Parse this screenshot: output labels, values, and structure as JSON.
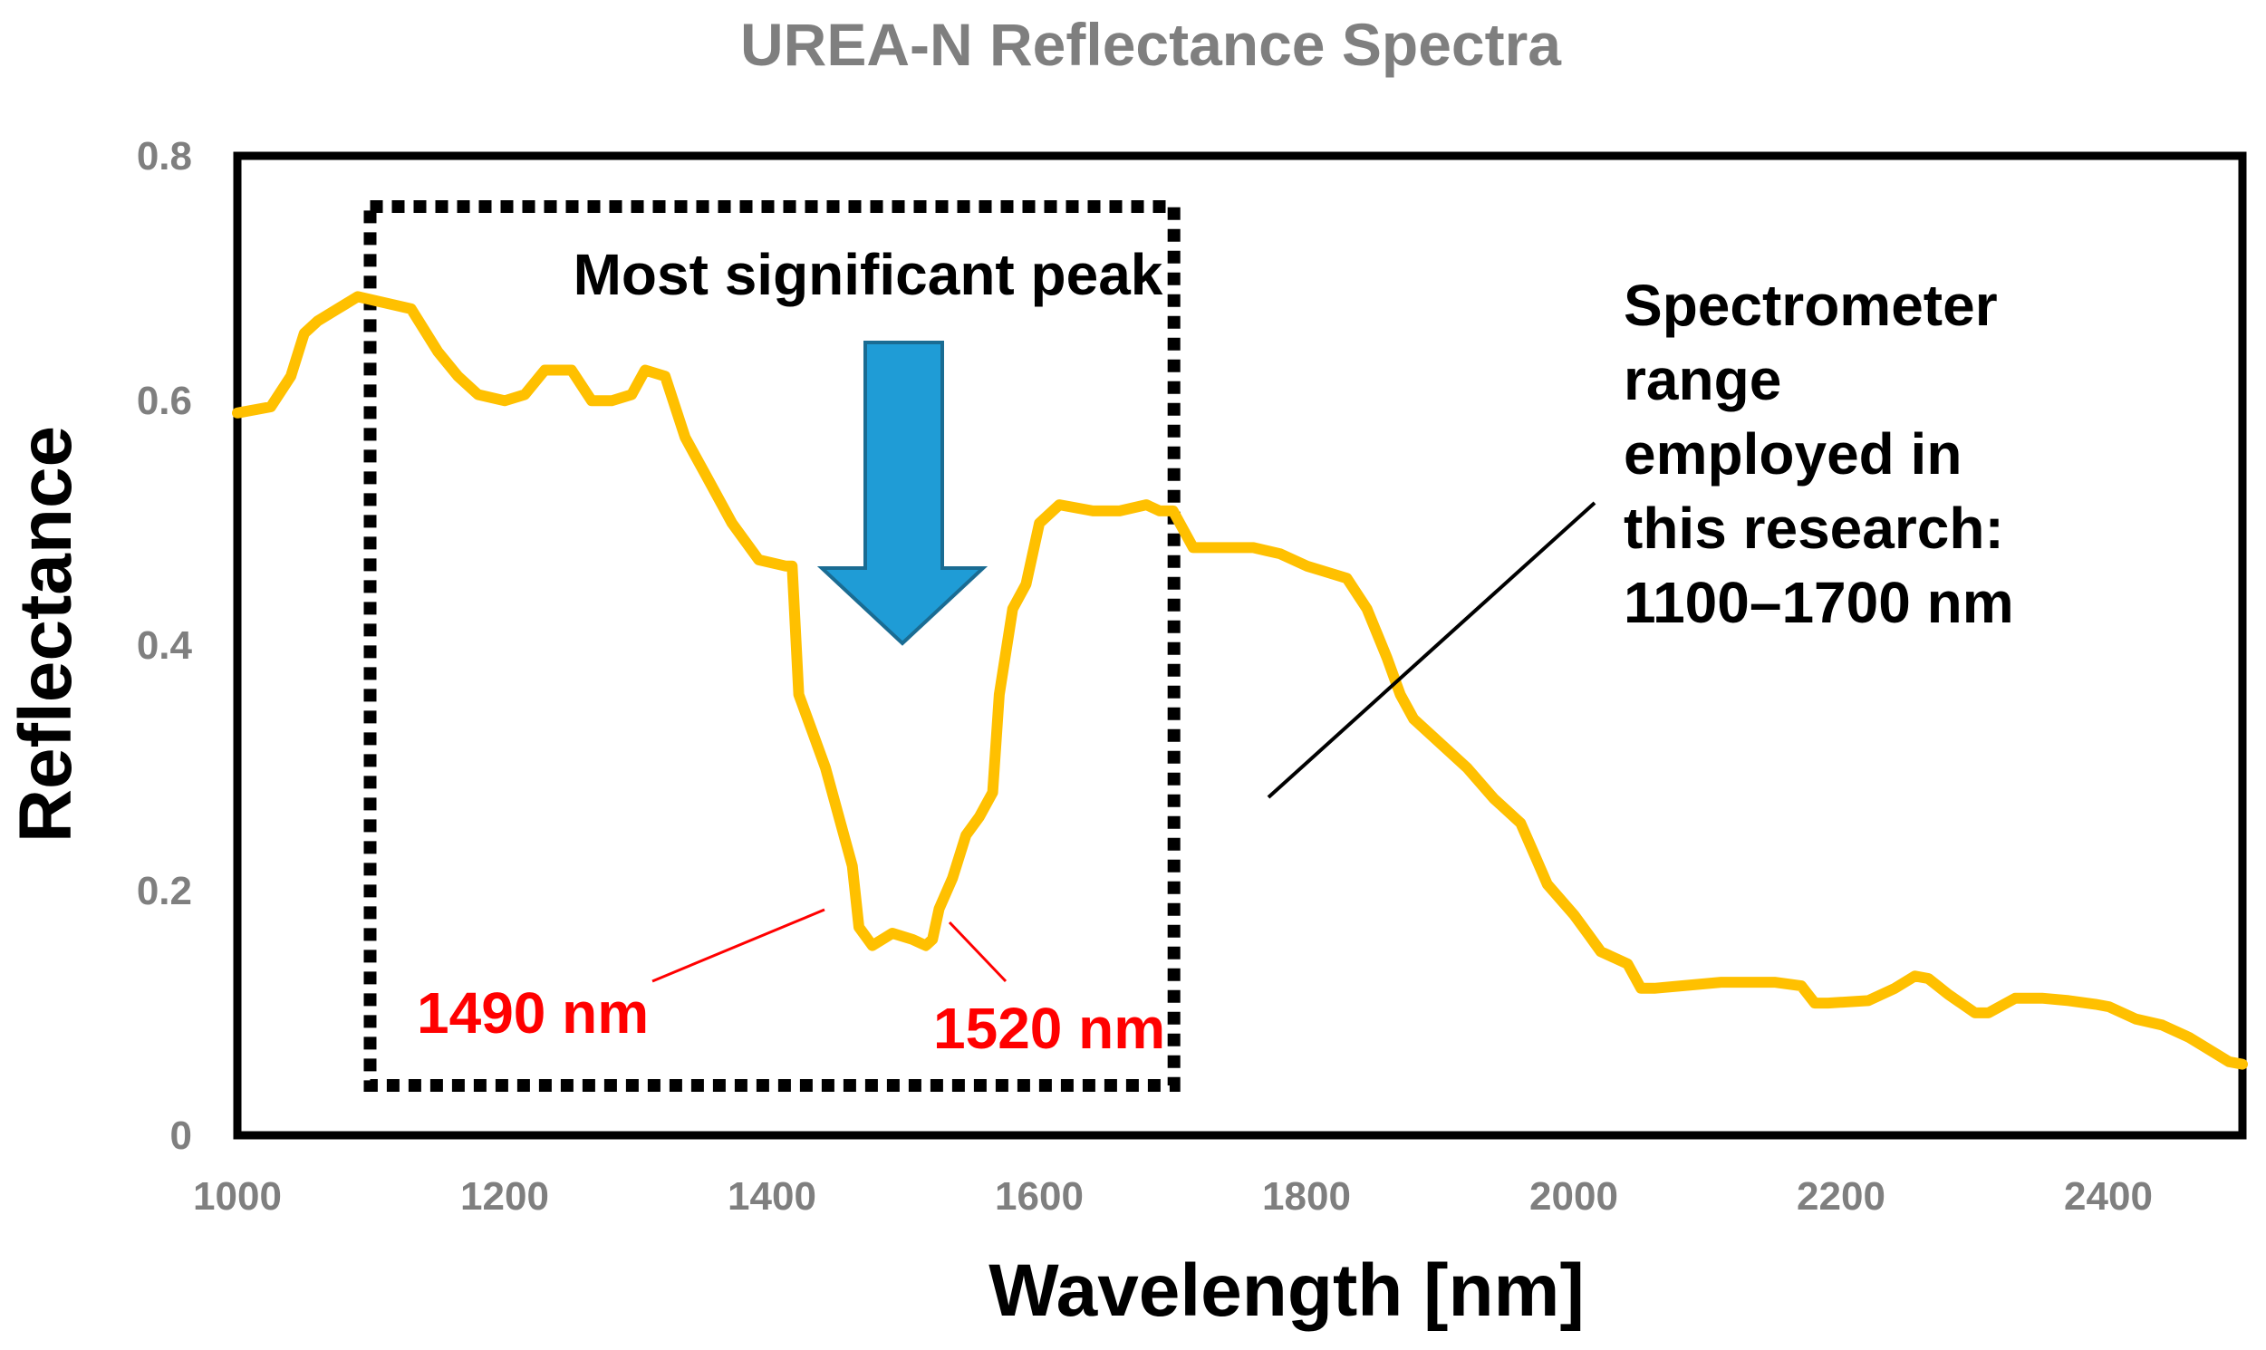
{
  "chart_data": {
    "type": "line",
    "title": "UREA-N Reflectance Spectra",
    "xlabel": "Wavelength [nm]",
    "ylabel": "Reflectance",
    "xlim": [
      1000,
      2500
    ],
    "ylim": [
      0,
      0.8
    ],
    "x_ticks": [
      "1000",
      "1200",
      "1400",
      "1600",
      "1800",
      "2000",
      "2200",
      "2400"
    ],
    "y_ticks": [
      "0",
      "0.2",
      "0.4",
      "0.6",
      "0.8"
    ],
    "grid": false,
    "series": [
      {
        "name": "UREA-N",
        "color": "#ffc000",
        "x": [
          1000,
          1025,
          1040,
          1050,
          1060,
          1075,
          1090,
          1110,
          1130,
          1150,
          1165,
          1180,
          1200,
          1215,
          1230,
          1250,
          1265,
          1280,
          1295,
          1305,
          1320,
          1335,
          1350,
          1370,
          1390,
          1410,
          1415,
          1420,
          1430,
          1440,
          1450,
          1460,
          1465,
          1475,
          1490,
          1505,
          1515,
          1520,
          1525,
          1535,
          1545,
          1555,
          1565,
          1570,
          1580,
          1590,
          1600,
          1615,
          1640,
          1660,
          1680,
          1690,
          1700,
          1715,
          1740,
          1760,
          1780,
          1800,
          1830,
          1845,
          1860,
          1870,
          1880,
          1900,
          1920,
          1940,
          1960,
          1970,
          1980,
          2000,
          2010,
          2020,
          2040,
          2050,
          2060,
          2080,
          2110,
          2150,
          2170,
          2180,
          2190,
          2220,
          2240,
          2255,
          2265,
          2280,
          2300,
          2310,
          2330,
          2350,
          2370,
          2390,
          2400,
          2420,
          2440,
          2460,
          2475,
          2490,
          2500
        ],
        "values": [
          0.59,
          0.595,
          0.62,
          0.655,
          0.665,
          0.675,
          0.685,
          0.68,
          0.675,
          0.64,
          0.62,
          0.605,
          0.6,
          0.605,
          0.625,
          0.625,
          0.6,
          0.6,
          0.605,
          0.625,
          0.62,
          0.57,
          0.54,
          0.5,
          0.47,
          0.465,
          0.465,
          0.36,
          0.33,
          0.3,
          0.26,
          0.22,
          0.17,
          0.155,
          0.165,
          0.16,
          0.155,
          0.16,
          0.185,
          0.21,
          0.245,
          0.26,
          0.28,
          0.36,
          0.43,
          0.45,
          0.5,
          0.515,
          0.51,
          0.51,
          0.515,
          0.51,
          0.51,
          0.48,
          0.48,
          0.48,
          0.475,
          0.465,
          0.455,
          0.43,
          0.39,
          0.36,
          0.34,
          0.32,
          0.3,
          0.275,
          0.255,
          0.23,
          0.205,
          0.18,
          0.165,
          0.15,
          0.14,
          0.12,
          0.12,
          0.122,
          0.125,
          0.125,
          0.122,
          0.108,
          0.108,
          0.11,
          0.12,
          0.13,
          0.128,
          0.115,
          0.1,
          0.1,
          0.112,
          0.112,
          0.11,
          0.107,
          0.105,
          0.095,
          0.09,
          0.08,
          0.07,
          0.06,
          0.058
        ]
      }
    ],
    "annotations": {
      "box_range_nm": [
        1100,
        1700
      ],
      "peak_label": "Most significant peak",
      "spectrometer_lines": [
        "Spectrometer",
        "range",
        "employed in",
        "this research:",
        "1100–1700 nm"
      ],
      "left_marker": "1490 nm",
      "right_marker": "1520 nm"
    }
  }
}
